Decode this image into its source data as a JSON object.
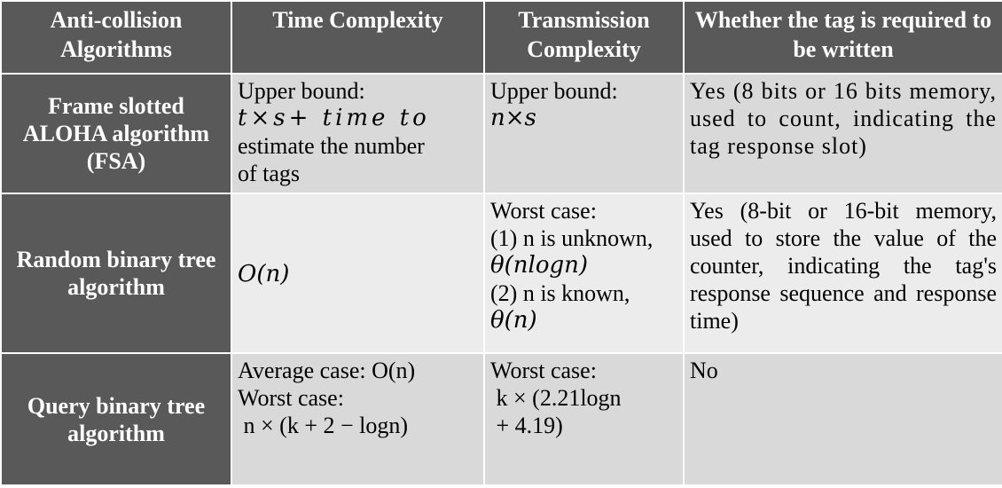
{
  "headers": [
    "Anti-collision Algorithms",
    "Time Complexity",
    "Transmission Complexity",
    "Whether the tag is required to be written"
  ],
  "rows": [
    {
      "algorithm": "Frame slotted ALOHA algorithm (FSA)",
      "time_lines": [
        "Upper bound:",
        "t×s+ time to",
        "estimate the number",
        "of tags"
      ],
      "transmission_lines": [
        "Upper bound:",
        "n×s"
      ],
      "written": "Yes (8 bits or 16 bits memory, used to count, indicating the tag response slot)"
    },
    {
      "algorithm": "Random binary tree algorithm",
      "time_lines": [
        "O(n)"
      ],
      "transmission_lines": [
        "Worst case:",
        "(1) n is unknown,",
        "θ(nlogn)",
        "(2) n is known,",
        "θ(n)"
      ],
      "written": "Yes (8-bit or 16-bit memory, used to store the value of the counter, indicating the tag's response sequence and response time)"
    },
    {
      "algorithm": "Query binary tree algorithm",
      "time_lines": [
        "Average case: O(n)",
        "Worst case:",
        " n × (k + 2 − logn)"
      ],
      "transmission_lines": [
        "Worst case:",
        " k × (2.21logn",
        " + 4.19)"
      ],
      "written": "No"
    }
  ],
  "colors": {
    "header_bg": "#595959",
    "dark_cell_bg": "#d9d9d9",
    "light_cell_bg": "#ececec",
    "header_text": "#ffffff"
  }
}
